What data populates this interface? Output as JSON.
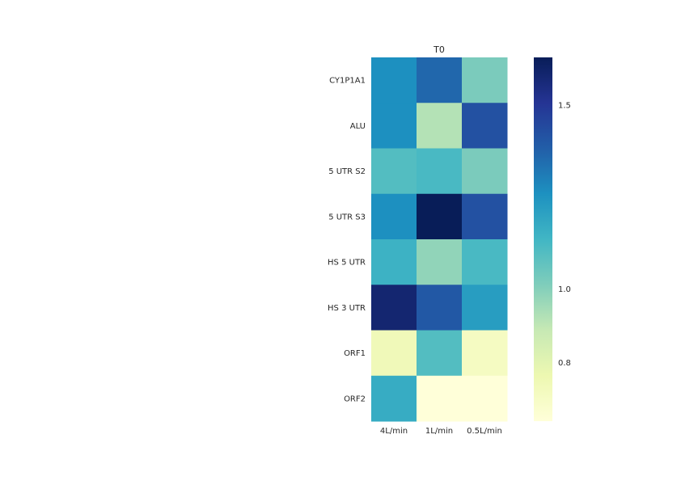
{
  "chart_data": {
    "type": "heatmap",
    "title": "T0",
    "rows": [
      "CY1P1A1",
      "ALU",
      "5 UTR S2",
      "5 UTR S3",
      "HS 5 UTR",
      "HS 3 UTR",
      "ORF1",
      "ORF2"
    ],
    "columns": [
      "4L/min",
      "1L/min",
      "0.5L/min"
    ],
    "values": [
      [
        1.26,
        1.36,
        1.02
      ],
      [
        1.26,
        0.92,
        1.42
      ],
      [
        1.1,
        1.12,
        1.02
      ],
      [
        1.26,
        1.63,
        1.42
      ],
      [
        1.15,
        0.98,
        1.12
      ],
      [
        1.58,
        1.4,
        1.22
      ],
      [
        0.74,
        1.1,
        0.71
      ],
      [
        1.17,
        0.64,
        0.64
      ]
    ],
    "colormap": "YlGnBu",
    "colorbar": {
      "range": [
        0.64,
        1.63
      ],
      "ticks": [
        0.8,
        1.0,
        1.5
      ],
      "tick_labels": [
        "0.8",
        "1.0",
        "1.5"
      ]
    },
    "grid": false
  }
}
